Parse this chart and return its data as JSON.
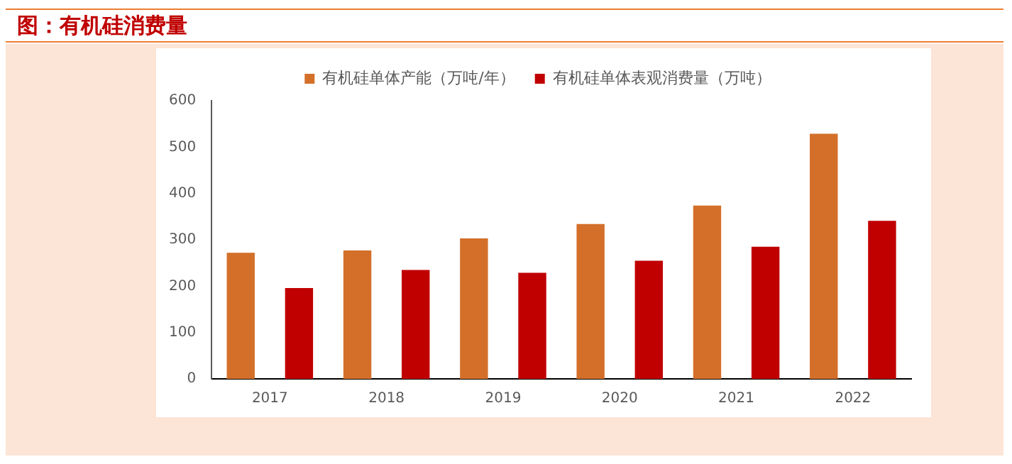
{
  "chart_data": {
    "type": "bar",
    "title": "图：有机硅消费量",
    "categories": [
      "2017",
      "2018",
      "2019",
      "2020",
      "2021",
      "2022"
    ],
    "series": [
      {
        "name": "有机硅单体产能（万吨/年）",
        "color": "#d46f2a",
        "values": [
          272,
          277,
          303,
          334,
          374,
          529
        ]
      },
      {
        "name": "有机硅单体表观消费量（万吨）",
        "color": "#c00000",
        "values": [
          196,
          235,
          229,
          255,
          285,
          341
        ]
      }
    ],
    "ylim": [
      0,
      600
    ],
    "yticks": [
      0,
      100,
      200,
      300,
      400,
      500,
      600
    ],
    "grid": false,
    "legend": "top"
  }
}
